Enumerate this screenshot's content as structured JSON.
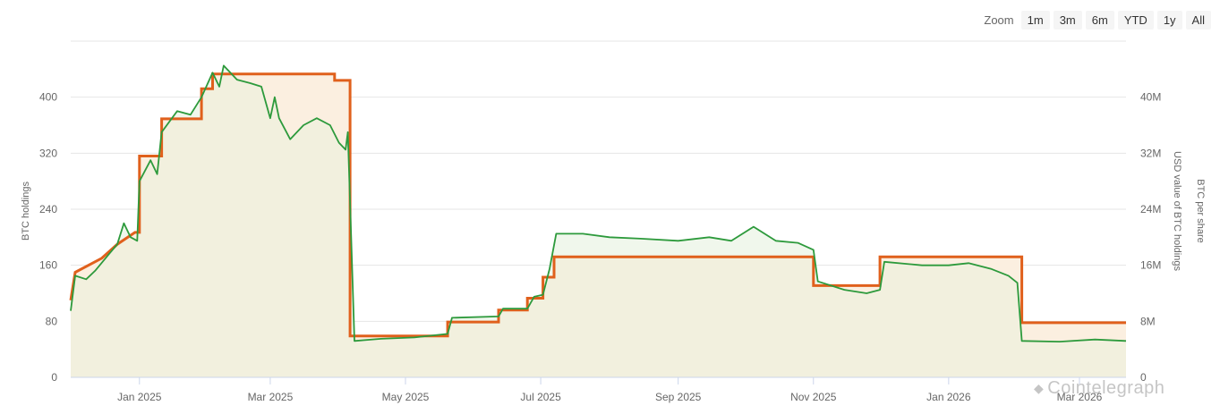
{
  "zoom": {
    "label": "Zoom",
    "buttons": [
      "1m",
      "3m",
      "6m",
      "YTD",
      "1y",
      "All"
    ]
  },
  "watermark": {
    "text": "Cointelegraph",
    "logo_icon": "diamond-logo-icon"
  },
  "colors": {
    "btc_line": "#e0601c",
    "usd_line": "#2d9a3c",
    "area_fill": "#f2f0de",
    "area_fill_top": "#fbefe0",
    "area_fill_green": "#eef6ea",
    "grid": "#e6e6e6"
  },
  "chart_data": {
    "type": "line",
    "x_range": [
      "2024-12-01",
      "2026-03-22"
    ],
    "x_ticks": [
      {
        "date": "2025-01-01",
        "label": "Jan 2025"
      },
      {
        "date": "2025-03-01",
        "label": "Mar 2025"
      },
      {
        "date": "2025-05-01",
        "label": "May 2025"
      },
      {
        "date": "2025-07-01",
        "label": "Jul 2025"
      },
      {
        "date": "2025-09-01",
        "label": "Sep 2025"
      },
      {
        "date": "2025-11-01",
        "label": "Nov 2025"
      },
      {
        "date": "2026-01-01",
        "label": "Jan 2026"
      },
      {
        "date": "2026-03-01",
        "label": "Mar 2026"
      }
    ],
    "y_left": {
      "label": "BTC holdings",
      "min": 0,
      "max": 480,
      "ticks": [
        0,
        80,
        160,
        240,
        320,
        400
      ]
    },
    "y_right": {
      "label": "USD value of BTC holdings",
      "min": 0,
      "max": 48000000,
      "ticks": [
        0,
        8000000,
        16000000,
        24000000,
        32000000,
        40000000
      ],
      "tick_labels": [
        "0",
        "8M",
        "16M",
        "24M",
        "32M",
        "40M"
      ]
    },
    "y_right_secondary_label": "BTC per share",
    "grid": true,
    "series": [
      {
        "axis": "left",
        "step": true,
        "points": [
          [
            "2024-12-01",
            110
          ],
          [
            "2024-12-03",
            150
          ],
          [
            "2024-12-15",
            170
          ],
          [
            "2024-12-22",
            190
          ],
          [
            "2024-12-30",
            207
          ],
          [
            "2025-01-01",
            207
          ],
          [
            "2025-01-01",
            316
          ],
          [
            "2025-01-11",
            316
          ],
          [
            "2025-01-11",
            369
          ],
          [
            "2025-01-29",
            369
          ],
          [
            "2025-01-29",
            412
          ],
          [
            "2025-02-03",
            412
          ],
          [
            "2025-02-03",
            433
          ],
          [
            "2025-03-30",
            433
          ],
          [
            "2025-03-30",
            424
          ],
          [
            "2025-04-06",
            424
          ],
          [
            "2025-04-06",
            59
          ],
          [
            "2025-05-20",
            59
          ],
          [
            "2025-05-20",
            79
          ],
          [
            "2025-06-12",
            79
          ],
          [
            "2025-06-12",
            96
          ],
          [
            "2025-06-25",
            96
          ],
          [
            "2025-06-25",
            113
          ],
          [
            "2025-07-02",
            113
          ],
          [
            "2025-07-02",
            143
          ],
          [
            "2025-07-07",
            143
          ],
          [
            "2025-07-07",
            172
          ],
          [
            "2025-11-01",
            172
          ],
          [
            "2025-11-01",
            131
          ],
          [
            "2025-12-01",
            131
          ],
          [
            "2025-12-01",
            172
          ],
          [
            "2026-02-03",
            172
          ],
          [
            "2026-02-03",
            78
          ],
          [
            "2026-03-22",
            78
          ]
        ]
      },
      {
        "axis": "right",
        "step": false,
        "points": [
          [
            "2024-12-01",
            9500000
          ],
          [
            "2024-12-03",
            14500000
          ],
          [
            "2024-12-08",
            14000000
          ],
          [
            "2024-12-12",
            15200000
          ],
          [
            "2024-12-18",
            17500000
          ],
          [
            "2024-12-22",
            19000000
          ],
          [
            "2024-12-25",
            22000000
          ],
          [
            "2024-12-28",
            20000000
          ],
          [
            "2024-12-31",
            19500000
          ],
          [
            "2025-01-01",
            28000000
          ],
          [
            "2025-01-06",
            31000000
          ],
          [
            "2025-01-09",
            29000000
          ],
          [
            "2025-01-11",
            35000000
          ],
          [
            "2025-01-18",
            38000000
          ],
          [
            "2025-01-24",
            37500000
          ],
          [
            "2025-01-29",
            40000000
          ],
          [
            "2025-02-03",
            43500000
          ],
          [
            "2025-02-06",
            41500000
          ],
          [
            "2025-02-08",
            44500000
          ],
          [
            "2025-02-14",
            42500000
          ],
          [
            "2025-02-20",
            42000000
          ],
          [
            "2025-02-25",
            41500000
          ],
          [
            "2025-03-01",
            37000000
          ],
          [
            "2025-03-03",
            40000000
          ],
          [
            "2025-03-05",
            37000000
          ],
          [
            "2025-03-10",
            34000000
          ],
          [
            "2025-03-16",
            36000000
          ],
          [
            "2025-03-22",
            37000000
          ],
          [
            "2025-03-28",
            36000000
          ],
          [
            "2025-04-01",
            33500000
          ],
          [
            "2025-04-04",
            32500000
          ],
          [
            "2025-04-05",
            35000000
          ],
          [
            "2025-04-08",
            5200000
          ],
          [
            "2025-04-20",
            5500000
          ],
          [
            "2025-05-05",
            5700000
          ],
          [
            "2025-05-20",
            6200000
          ],
          [
            "2025-05-22",
            8500000
          ],
          [
            "2025-06-12",
            8700000
          ],
          [
            "2025-06-14",
            9800000
          ],
          [
            "2025-06-25",
            9800000
          ],
          [
            "2025-06-28",
            11500000
          ],
          [
            "2025-07-02",
            11800000
          ],
          [
            "2025-07-05",
            15500000
          ],
          [
            "2025-07-08",
            20500000
          ],
          [
            "2025-07-20",
            20500000
          ],
          [
            "2025-08-01",
            20000000
          ],
          [
            "2025-08-15",
            19800000
          ],
          [
            "2025-09-01",
            19500000
          ],
          [
            "2025-09-15",
            20000000
          ],
          [
            "2025-09-25",
            19500000
          ],
          [
            "2025-10-05",
            21500000
          ],
          [
            "2025-10-15",
            19500000
          ],
          [
            "2025-10-25",
            19200000
          ],
          [
            "2025-11-01",
            18200000
          ],
          [
            "2025-11-03",
            13700000
          ],
          [
            "2025-11-15",
            12500000
          ],
          [
            "2025-11-25",
            12000000
          ],
          [
            "2025-12-01",
            12500000
          ],
          [
            "2025-12-03",
            16500000
          ],
          [
            "2025-12-20",
            16000000
          ],
          [
            "2026-01-01",
            16000000
          ],
          [
            "2026-01-10",
            16300000
          ],
          [
            "2026-01-20",
            15500000
          ],
          [
            "2026-01-28",
            14500000
          ],
          [
            "2026-02-01",
            13500000
          ],
          [
            "2026-02-03",
            5200000
          ],
          [
            "2026-02-20",
            5100000
          ],
          [
            "2026-03-08",
            5400000
          ],
          [
            "2026-03-22",
            5200000
          ]
        ]
      }
    ]
  }
}
